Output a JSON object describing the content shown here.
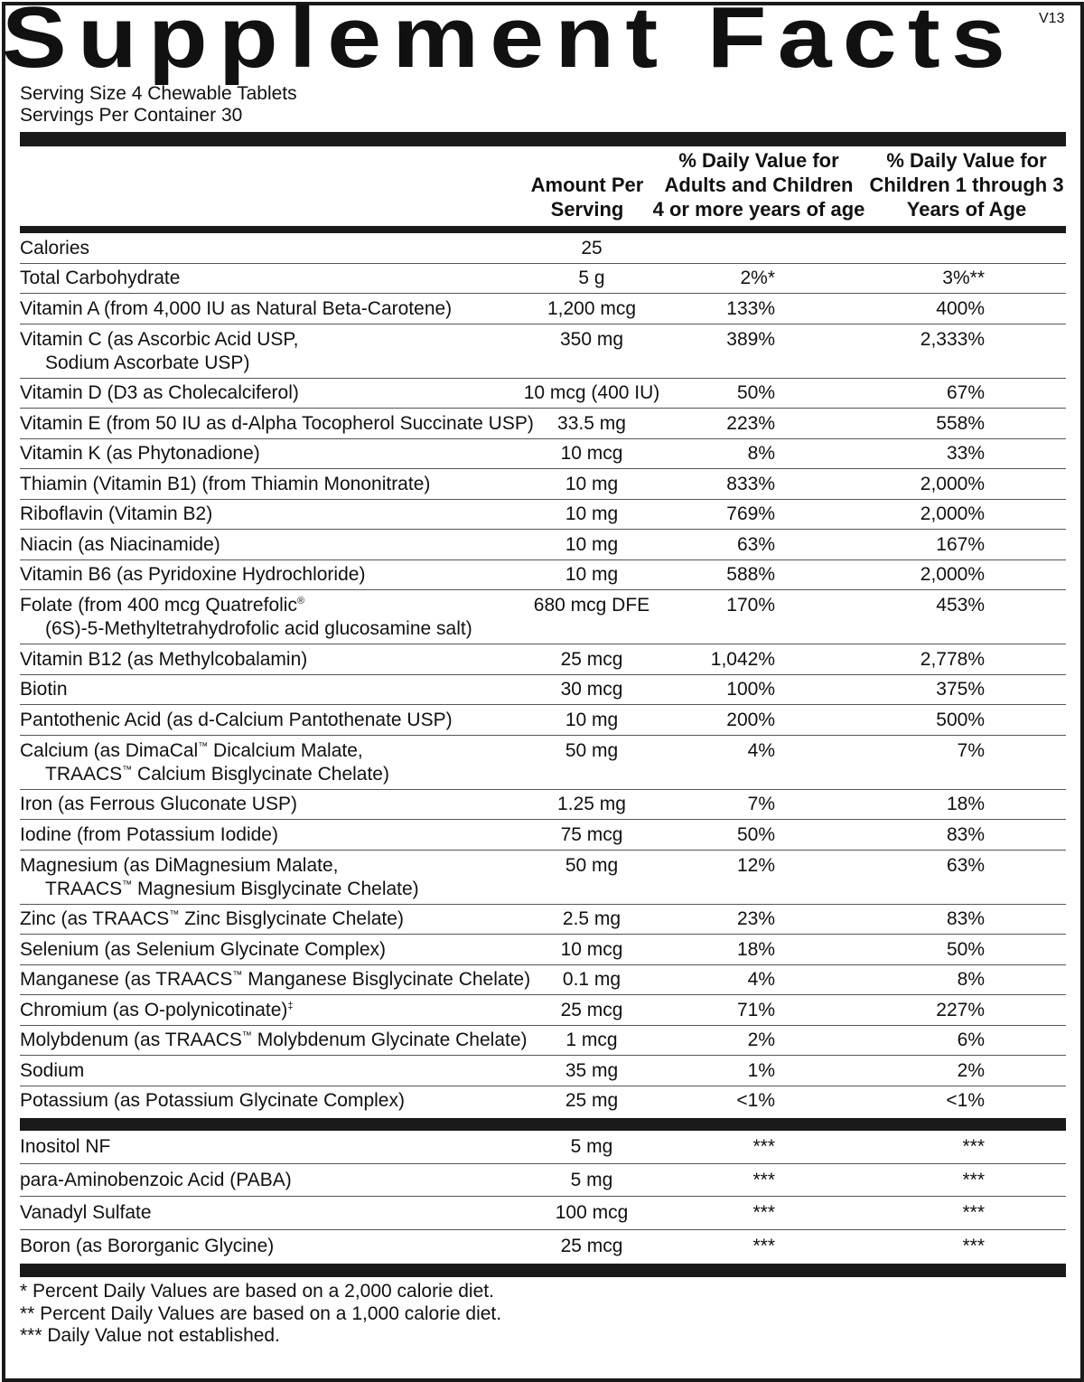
{
  "title": "Supplement Facts",
  "version": "V13",
  "serving_size": "Serving Size 4 Chewable Tablets",
  "servings_per_container": "Servings Per Container 30",
  "table": {
    "header": [
      [
        "Amount Per",
        "Serving"
      ],
      [
        "% Daily Value for",
        "Adults and Children",
        "4 or more years of age"
      ],
      [
        "% Daily Value for",
        "Children 1 through 3",
        "Years of Age"
      ]
    ],
    "rows": [
      {
        "name": [
          "Calories"
        ],
        "amount": "25",
        "dv_adult": null,
        "dv_child": null
      },
      {
        "name": [
          "Total Carbohydrate"
        ],
        "amount": "5 g",
        "dv_adult": "2%*",
        "dv_child": "3%**"
      },
      {
        "name": [
          "Vitamin A (from 4,000 IU as Natural Beta-Carotene)"
        ],
        "amount": "1,200 mcg",
        "dv_adult": "133%",
        "dv_child": "400%"
      },
      {
        "name": [
          "Vitamin C (as Ascorbic Acid USP,",
          "Sodium Ascorbate USP)"
        ],
        "amount": "350 mg",
        "dv_adult": "389%",
        "dv_child": "2,333%"
      },
      {
        "name": [
          "Vitamin D (D3 as Cholecalciferol)"
        ],
        "amount": "10 mcg (400 IU)",
        "dv_adult": "50%",
        "dv_child": "67%"
      },
      {
        "name": [
          "Vitamin E (from 50 IU as d-Alpha Tocopherol Succinate USP)"
        ],
        "amount": "33.5 mg",
        "dv_adult": "223%",
        "dv_child": "558%"
      },
      {
        "name": [
          "Vitamin K (as Phytonadione)"
        ],
        "amount": "10 mcg",
        "dv_adult": "8%",
        "dv_child": "33%"
      },
      {
        "name": [
          "Thiamin (Vitamin B1) (from Thiamin Mononitrate)"
        ],
        "amount": "10 mg",
        "dv_adult": "833%",
        "dv_child": "2,000%"
      },
      {
        "name": [
          "Riboflavin (Vitamin B2)"
        ],
        "amount": "10 mg",
        "dv_adult": "769%",
        "dv_child": "2,000%"
      },
      {
        "name": [
          "Niacin (as Niacinamide)"
        ],
        "amount": "10 mg",
        "dv_adult": "63%",
        "dv_child": "167%"
      },
      {
        "name": [
          "Vitamin B6 (as Pyridoxine Hydrochloride)"
        ],
        "amount": "10 mg",
        "dv_adult": "588%",
        "dv_child": "2,000%"
      },
      {
        "name": [
          "Folate (from 400 mcg Quatrefolic®",
          "(6S)-5-Methyltetrahydrofolic acid glucosamine salt)"
        ],
        "amount": "680 mcg DFE",
        "dv_adult": "170%",
        "dv_child": "453%"
      },
      {
        "name": [
          "Vitamin B12 (as Methylcobalamin)"
        ],
        "amount": "25 mcg",
        "dv_adult": "1,042%",
        "dv_child": "2,778%"
      },
      {
        "name": [
          "Biotin"
        ],
        "amount": "30 mcg",
        "dv_adult": "100%",
        "dv_child": "375%"
      },
      {
        "name": [
          "Pantothenic Acid (as d-Calcium Pantothenate USP)"
        ],
        "amount": "10 mg",
        "dv_adult": "200%",
        "dv_child": "500%"
      },
      {
        "name": [
          "Calcium (as DimaCal™ Dicalcium Malate,",
          "TRAACS™ Calcium Bisglycinate Chelate)"
        ],
        "amount": "50 mg",
        "dv_adult": "4%",
        "dv_child": "7%"
      },
      {
        "name": [
          "Iron (as Ferrous Gluconate USP)"
        ],
        "amount": "1.25 mg",
        "dv_adult": "7%",
        "dv_child": "18%"
      },
      {
        "name": [
          "Iodine (from Potassium Iodide)"
        ],
        "amount": "75 mcg",
        "dv_adult": "50%",
        "dv_child": "83%"
      },
      {
        "name": [
          "Magnesium (as DiMagnesium Malate,",
          "TRAACS™ Magnesium Bisglycinate Chelate)"
        ],
        "amount": "50 mg",
        "dv_adult": "12%",
        "dv_child": "63%"
      },
      {
        "name": [
          "Zinc (as TRAACS™ Zinc Bisglycinate Chelate)"
        ],
        "amount": "2.5 mg",
        "dv_adult": "23%",
        "dv_child": "83%"
      },
      {
        "name": [
          "Selenium (as Selenium Glycinate Complex)"
        ],
        "amount": "10 mcg",
        "dv_adult": "18%",
        "dv_child": "50%"
      },
      {
        "name": [
          "Manganese (as TRAACS™ Manganese Bisglycinate Chelate)"
        ],
        "amount": "0.1 mg",
        "dv_adult": "4%",
        "dv_child": "8%"
      },
      {
        "name": [
          "Chromium (as O-polynicotinate)‡"
        ],
        "amount": "25 mcg",
        "dv_adult": "71%",
        "dv_child": "227%"
      },
      {
        "name": [
          "Molybdenum (as TRAACS™ Molybdenum Glycinate Chelate)"
        ],
        "amount": "1 mcg",
        "dv_adult": "2%",
        "dv_child": "6%"
      },
      {
        "name": [
          "Sodium"
        ],
        "amount": "35 mg",
        "dv_adult": "1%",
        "dv_child": "2%"
      },
      {
        "name": [
          "Potassium (as Potassium Glycinate Complex)"
        ],
        "amount": "25 mg",
        "dv_adult": "<1%",
        "dv_child": "<1%"
      }
    ],
    "other_rows": [
      {
        "name": [
          "Inositol NF"
        ],
        "amount": "5 mg",
        "dv_adult": "***",
        "dv_child": "***"
      },
      {
        "name": [
          "para-Aminobenzoic Acid (PABA)"
        ],
        "amount": "5 mg",
        "dv_adult": "***",
        "dv_child": "***"
      },
      {
        "name": [
          "Vanadyl Sulfate"
        ],
        "amount": "100 mcg",
        "dv_adult": "***",
        "dv_child": "***"
      },
      {
        "name": [
          "Boron (as Bororganic Glycine)"
        ],
        "amount": "25 mcg",
        "dv_adult": "***",
        "dv_child": "***"
      }
    ]
  },
  "footnotes": [
    "* Percent Daily Values are based on a 2,000 calorie diet.",
    "** Percent Daily Values are based on a 1,000 calorie diet.",
    "*** Daily Value not established."
  ]
}
